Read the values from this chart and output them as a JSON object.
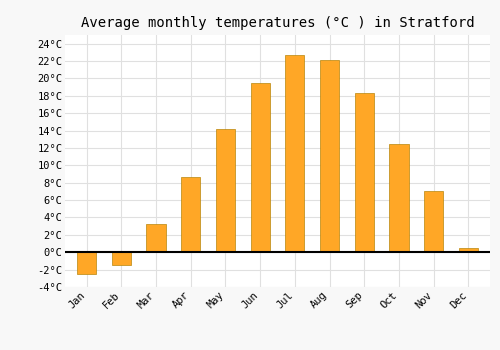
{
  "title": "Average monthly temperatures (°C ) in Stratford",
  "months": [
    "Jan",
    "Feb",
    "Mar",
    "Apr",
    "May",
    "Jun",
    "Jul",
    "Aug",
    "Sep",
    "Oct",
    "Nov",
    "Dec"
  ],
  "temperatures": [
    -2.5,
    -1.5,
    3.2,
    8.7,
    14.2,
    19.5,
    22.7,
    22.1,
    18.3,
    12.5,
    7.0,
    0.5
  ],
  "bar_color": "#FFA726",
  "bar_edge_color": "#b8860b",
  "background_color": "#f8f8f8",
  "plot_bg_color": "#ffffff",
  "grid_color": "#e0e0e0",
  "ylim": [
    -4,
    25
  ],
  "yticks": [
    -4,
    -2,
    0,
    2,
    4,
    6,
    8,
    10,
    12,
    14,
    16,
    18,
    20,
    22,
    24
  ],
  "zero_line_color": "#000000",
  "title_fontsize": 10,
  "tick_fontsize": 7.5,
  "bar_width": 0.55
}
